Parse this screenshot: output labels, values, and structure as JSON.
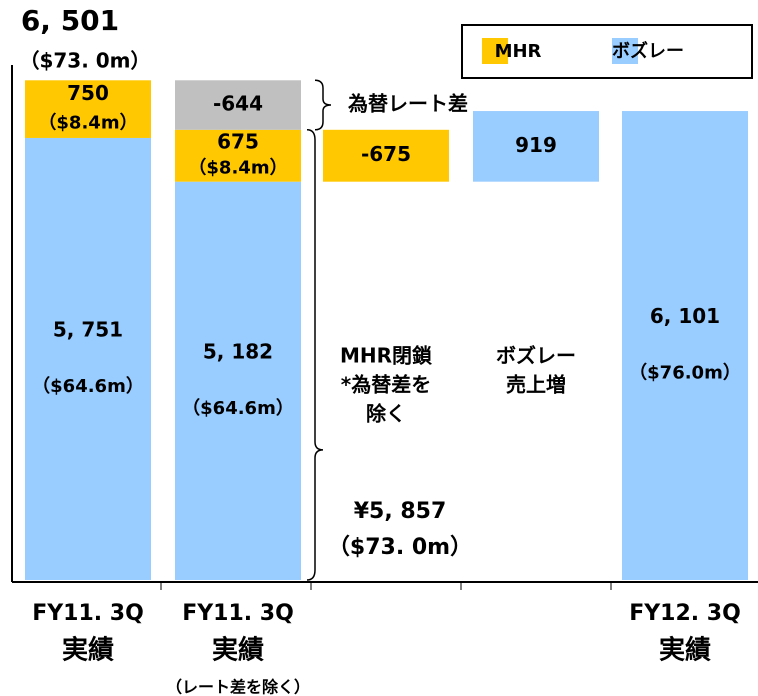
{
  "chart_data": {
    "type": "waterfall",
    "categories": [
      [
        "FY11. 3Q",
        "実績"
      ],
      [
        "FY11. 3Q",
        "実績",
        "（レート差を除く）"
      ],
      [
        "MHR閉鎖",
        "*為替差を",
        "除く"
      ],
      [
        "ボズレー",
        "売上増"
      ],
      [
        "FY12. 3Q",
        "実績"
      ]
    ],
    "measure": [
      "total",
      "total",
      "relative",
      "relative",
      "total"
    ],
    "series": [
      {
        "name": "ボズレー",
        "color": "#99ccff",
        "values": [
          5751,
          5182,
          null,
          919,
          6101
        ],
        "value_labels": [
          "5, 751",
          "5, 182",
          null,
          "919",
          "6, 101"
        ],
        "sub_labels": [
          "（$64.6m）",
          "（$64.6m）",
          null,
          null,
          "（$76.0m）"
        ]
      },
      {
        "name": "MHR",
        "color": "#ffc800",
        "values": [
          750,
          675,
          -675,
          null,
          null
        ],
        "value_labels": [
          "750",
          "675",
          "-675",
          null,
          null
        ],
        "sub_labels": [
          "（$8.4m）",
          "（$8.4m）",
          null,
          null,
          null
        ]
      }
    ],
    "rate_difference": {
      "label": "為替レート差",
      "value": -644,
      "color": "#c0c0c0"
    },
    "annotations": [
      "6, 501",
      "（$73. 0m）",
      "¥5, 857",
      "（$73. 0m）"
    ],
    "ylim": [
      0,
      6700
    ],
    "legend": "upper right"
  }
}
